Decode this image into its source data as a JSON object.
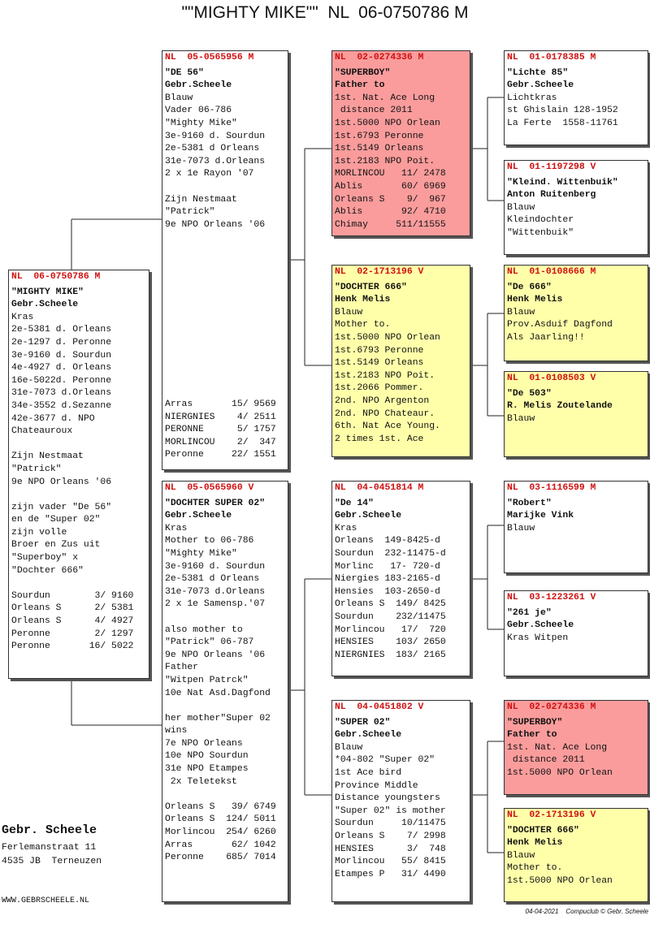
{
  "title": "\"\"MIGHTY MIKE\"\"  NL  06-0750786 M",
  "boxes": [
    {
      "header": "NL  06-0750786 M",
      "paragraphs": [
        [
          "\"MIGHTY MIKE\"",
          "Gebr.Scheele",
          "Kras",
          "2e-5381 d. Orleans",
          "2e-1297 d. Peronne",
          "3e-9160 d. Sourdun",
          "4e-4927 d. Orleans",
          "16e-5022d. Peronne",
          "31e-7073 d.Orleans",
          "34e-3552 d.Sezanne",
          "42e-3677 d. NPO",
          "Chateauroux"
        ],
        [
          "Zijn Nestmaat",
          "\"Patrick\"",
          "9e NPO Orleans '06"
        ],
        [
          "zijn vader \"De 56\"",
          "en de \"Super 02\"",
          "zijn volle",
          "Broer en Zus uit",
          "\"Superboy\" x",
          "\"Dochter 666\""
        ],
        [
          "Sourdun        3/ 9160",
          "Orleans S      2/ 5381",
          "Orleans S      4/ 4927",
          "Peronne        2/ 1297",
          "Peronne       16/ 5022"
        ]
      ]
    },
    {
      "header": "NL  05-0565956 M",
      "paragraphs": [
        [
          "\"DE 56\"",
          "Gebr.Scheele",
          "Blauw",
          "Vader 06-786",
          "\"Mighty Mike\"",
          "3e-9160 d. Sourdun",
          "2e-5381 d Orleans",
          "31e-7073 d.Orleans",
          "2 x 1e Rayon '07"
        ],
        [
          "Zijn Nestmaat",
          "\"Patrick\"",
          "9e NPO Orleans '06"
        ],
        [
          "Arras       15/ 9569",
          "NIERGNIES    4/ 2511",
          "PERONNE      5/ 1757",
          "MORLINCOU    2/  347",
          "Peronne     22/ 1551"
        ]
      ]
    },
    {
      "header": "NL  05-0565960 V",
      "paragraphs": [
        [
          "\"DOCHTER SUPER 02\"",
          "Gebr.Scheele",
          "Kras",
          "Mother to 06-786",
          "\"Mighty Mike\"",
          "3e-9160 d. Sourdun",
          "2e-5381 d Orleans",
          "31e-7073 d.Orleans",
          "2 x 1e Samensp.'07"
        ],
        [
          "also mother to",
          "\"Patrick\" 06-787",
          "9e NPO Orleans '06",
          "Father",
          "\"Witpen Patrck\"",
          "10e Nat Asd.Dagfond"
        ],
        [
          "her mother\"Super 02",
          "wins",
          "7e NPO Orleans",
          "10e NPO Sourdun",
          "31e NPO Etampes",
          " 2x Teletekst"
        ],
        [
          "Orleans S   39/ 6749",
          "Orleans S  124/ 5011",
          "Morlincou  254/ 6260",
          "Arras       62/ 1042",
          "Peronne    685/ 7014"
        ]
      ]
    },
    {
      "header": "NL  02-0274336 M",
      "paragraphs": [
        [
          "\"SUPERBOY\"",
          "Father to",
          "1st. Nat. Ace Long",
          " distance 2011",
          "1st.5000 NPO Orlean",
          "1st.6793 Peronne",
          "1st.5149 Orleans",
          "1st.2183 NPO Poit.",
          "MORLINCOU   11/ 2478",
          "Ablis       60/ 6969",
          "Orleans S    9/  967",
          "Ablis       92/ 4710",
          "Chimay     511/11555"
        ]
      ]
    },
    {
      "header": "NL  02-1713196 V",
      "paragraphs": [
        [
          "\"DOCHTER 666\"",
          "Henk Melis",
          "Blauw",
          "Mother to.",
          "1st.5000 NPO Orlean",
          "1st.6793 Peronne",
          "1st.5149 Orleans",
          "1st.2183 NPO Poit.",
          "1st.2066 Pommer.",
          "2nd. NPO Argenton",
          "2nd. NPO Chateaur.",
          "6th. Nat Ace Young.",
          "2 times 1st. Ace"
        ]
      ]
    },
    {
      "header": "NL  04-0451814 M",
      "paragraphs": [
        [
          "\"De 14\"",
          "Gebr.Scheele",
          "Kras",
          "Orleans  149-8425-d",
          "Sourdun  232-11475-d",
          "Morlinc   17- 720-d",
          "Niergies 183-2165-d",
          "Hensies  103-2650-d",
          "Orleans S  149/ 8425",
          "Sourdun    232/11475",
          "Morlincou   17/  720",
          "HENSIES    103/ 2650",
          "NIERGNIES  183/ 2165"
        ]
      ]
    },
    {
      "header": "NL  04-0451802 V",
      "paragraphs": [
        [
          "\"SUPER 02\"",
          "Gebr.Scheele",
          "Blauw",
          "*04-802 \"Super 02\"",
          "1st Ace bird",
          "Province Middle",
          "Distance youngsters",
          "\"Super 02\" is mother",
          "Sourdun     10/11475",
          "Orleans S    7/ 2998",
          "HENSIES      3/  748",
          "Morlincou   55/ 8415",
          "Etampes P   31/ 4490"
        ]
      ]
    },
    {
      "header": "NL  01-0178385 M",
      "paragraphs": [
        [
          "\"Lichte 85\"",
          "Gebr.Scheele",
          "Lichtkras",
          "st Ghislain 128-1952",
          "La Ferte  1558-11761"
        ]
      ]
    },
    {
      "header": "NL  01-1197298 V",
      "paragraphs": [
        [
          "\"Kleind. Wittenbuik\"",
          "Anton Ruitenberg",
          "Blauw",
          "Kleindochter",
          "\"Wittenbuik\""
        ]
      ]
    },
    {
      "header": "NL  01-0108666 M",
      "paragraphs": [
        [
          "\"De 666\"",
          "Henk Melis",
          "Blauw",
          "Prov.Asduif Dagfond",
          "Als Jaarling!!"
        ]
      ]
    },
    {
      "header": "NL  01-0108503 V",
      "paragraphs": [
        [
          "\"De 503\"",
          "R. Melis Zoutelande",
          "Blauw"
        ]
      ]
    },
    {
      "header": "NL  03-1116599 M",
      "paragraphs": [
        [
          "\"Robert\"",
          "Marijke Vink",
          "Blauw"
        ]
      ]
    },
    {
      "header": "NL  03-1223261 V",
      "paragraphs": [
        [
          "\"261 je\"",
          "Gebr.Scheele",
          "Kras Witpen"
        ]
      ]
    },
    {
      "header": "NL  02-0274336 M",
      "paragraphs": [
        [
          "\"SUPERBOY\"",
          "Father to",
          "1st. Nat. Ace Long",
          " distance 2011",
          "1st.5000 NPO Orlean"
        ]
      ]
    },
    {
      "header": "NL  02-1713196 V",
      "paragraphs": [
        [
          "\"DOCHTER 666\"",
          "Henk Melis",
          "Blauw",
          "Mother to.",
          "1st.5000 NPO Orlean"
        ]
      ]
    }
  ],
  "footer": {
    "name": "Gebr. Scheele",
    "street": "Ferlemanstraat 11",
    "city": "4535 JB  Terneuzen",
    "website": "WWW.GEBRSCHEELE.NL",
    "credit": "04-04-2021    Compuclub © Gebr. Scheele"
  }
}
